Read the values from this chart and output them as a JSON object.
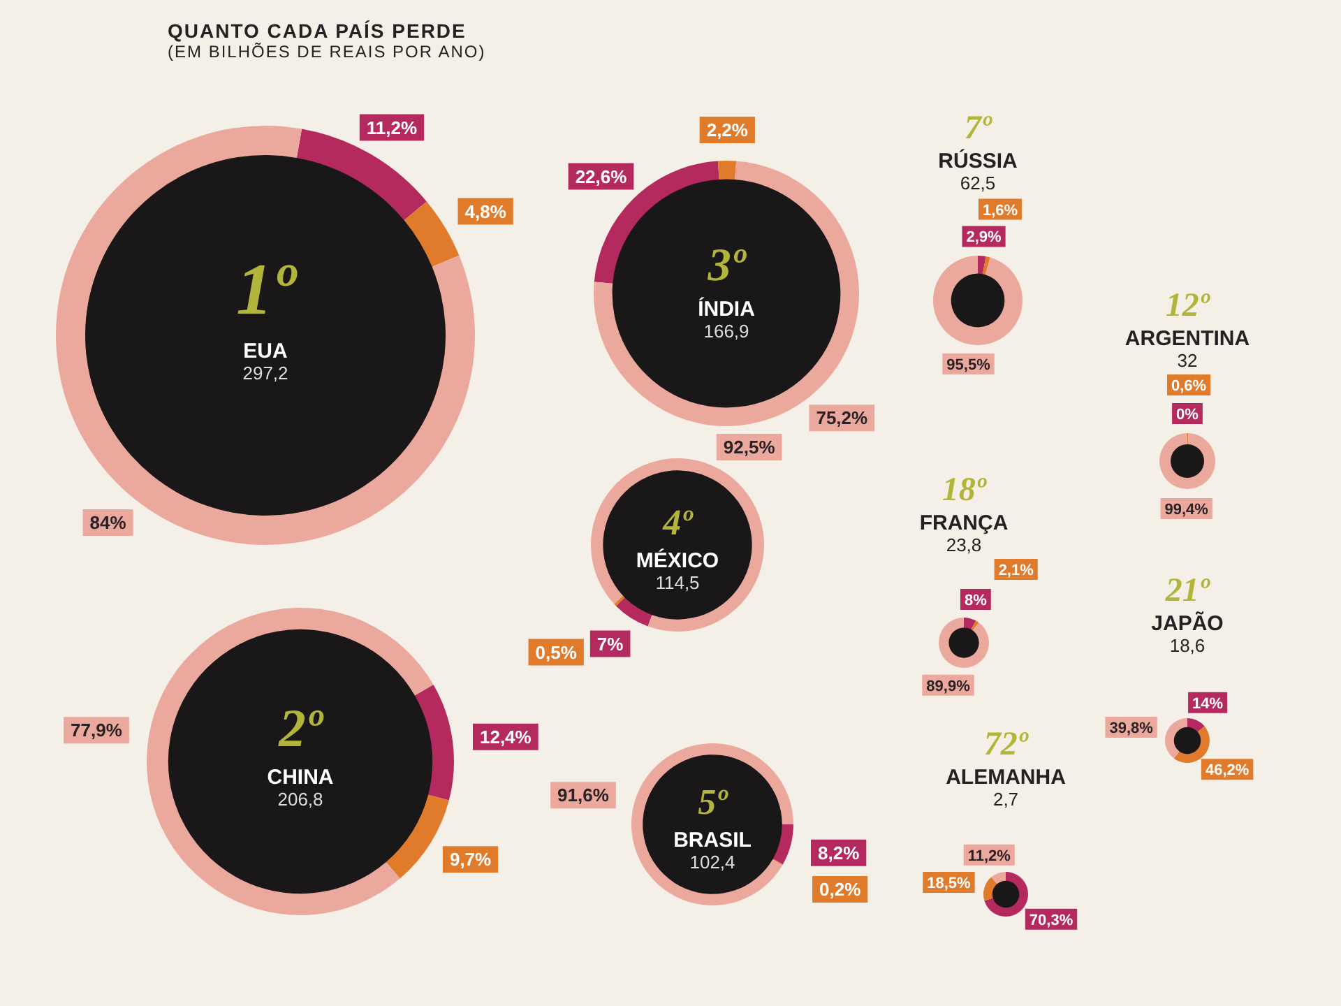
{
  "chart_data": [
    {
      "type": "other",
      "title": "QUANTO CADA PAÍS PERDE",
      "subtitle": "(EM BILHÕES DE REAIS POR ANO)"
    },
    {
      "type": "donut",
      "title": "1º",
      "subtitle": "EUA",
      "annotations": [
        "297,2"
      ],
      "categories": [
        null,
        null,
        null
      ],
      "values": [
        11.2,
        4.8,
        84
      ],
      "value_labels": [
        "11,2%",
        "4,8%",
        "84%"
      ],
      "colors": [
        "#b42a5f",
        "#e07b2c",
        "#eba89c"
      ]
    },
    {
      "type": "donut",
      "title": "2º",
      "subtitle": "CHINA",
      "annotations": [
        "206,8"
      ],
      "categories": [
        null,
        null,
        null
      ],
      "values": [
        12.4,
        9.7,
        77.9
      ],
      "value_labels": [
        "12,4%",
        "9,7%",
        "77,9%"
      ],
      "colors": [
        "#b42a5f",
        "#e07b2c",
        "#eba89c"
      ]
    },
    {
      "type": "donut",
      "title": "3º",
      "subtitle": "ÍNDIA",
      "annotations": [
        "166,9"
      ],
      "categories": [
        null,
        null,
        null
      ],
      "values": [
        22.6,
        2.2,
        75.2
      ],
      "value_labels": [
        "22,6%",
        "2,2%",
        "75,2%"
      ],
      "colors": [
        "#b42a5f",
        "#e07b2c",
        "#eba89c"
      ]
    },
    {
      "type": "donut",
      "title": "4º",
      "subtitle": "MÉXICO",
      "annotations": [
        "114,5"
      ],
      "categories": [
        null,
        null,
        null
      ],
      "values": [
        7,
        0.5,
        92.5
      ],
      "value_labels": [
        "7%",
        "0,5%",
        "92,5%"
      ],
      "colors": [
        "#b42a5f",
        "#e07b2c",
        "#eba89c"
      ]
    },
    {
      "type": "donut",
      "title": "5º",
      "subtitle": "BRASIL",
      "annotations": [
        "102,4"
      ],
      "categories": [
        null,
        null,
        null
      ],
      "values": [
        8.2,
        0.2,
        91.6
      ],
      "value_labels": [
        "8,2%",
        "0,2%",
        "91,6%"
      ],
      "colors": [
        "#b42a5f",
        "#e07b2c",
        "#eba89c"
      ]
    },
    {
      "type": "donut",
      "title": "7º",
      "subtitle": "RÚSSIA",
      "annotations": [
        "62,5"
      ],
      "categories": [
        null,
        null,
        null
      ],
      "values": [
        2.9,
        1.6,
        95.5
      ],
      "value_labels": [
        "2,9%",
        "1,6%",
        "95,5%"
      ],
      "colors": [
        "#b42a5f",
        "#e07b2c",
        "#eba89c"
      ]
    },
    {
      "type": "donut",
      "title": "12º",
      "subtitle": "ARGENTINA",
      "annotations": [
        "32"
      ],
      "categories": [
        null,
        null,
        null
      ],
      "values": [
        0,
        0.6,
        99.4
      ],
      "value_labels": [
        "0%",
        "0,6%",
        "99,4%"
      ],
      "colors": [
        "#b42a5f",
        "#e07b2c",
        "#eba89c"
      ]
    },
    {
      "type": "donut",
      "title": "18º",
      "subtitle": "FRANÇA",
      "annotations": [
        "23,8"
      ],
      "categories": [
        null,
        null,
        null
      ],
      "values": [
        8,
        2.1,
        89.9
      ],
      "value_labels": [
        "8%",
        "2,1%",
        "89,9%"
      ],
      "colors": [
        "#b42a5f",
        "#e07b2c",
        "#eba89c"
      ]
    },
    {
      "type": "donut",
      "title": "21º",
      "subtitle": "JAPÃO",
      "annotations": [
        "18,6"
      ],
      "categories": [
        null,
        null,
        null
      ],
      "values": [
        14,
        46.2,
        39.8
      ],
      "value_labels": [
        "14%",
        "46,2%",
        "39,8%"
      ],
      "colors": [
        "#b42a5f",
        "#e07b2c",
        "#eba89c"
      ]
    },
    {
      "type": "donut",
      "title": "72º",
      "subtitle": "ALEMANHA",
      "annotations": [
        "2,7"
      ],
      "categories": [
        null,
        null,
        null
      ],
      "values": [
        70.3,
        18.5,
        11.2
      ],
      "value_labels": [
        "70,3%",
        "18,5%",
        "11,2%"
      ],
      "colors": [
        "#b42a5f",
        "#e07b2c",
        "#eba89c"
      ]
    }
  ]
}
